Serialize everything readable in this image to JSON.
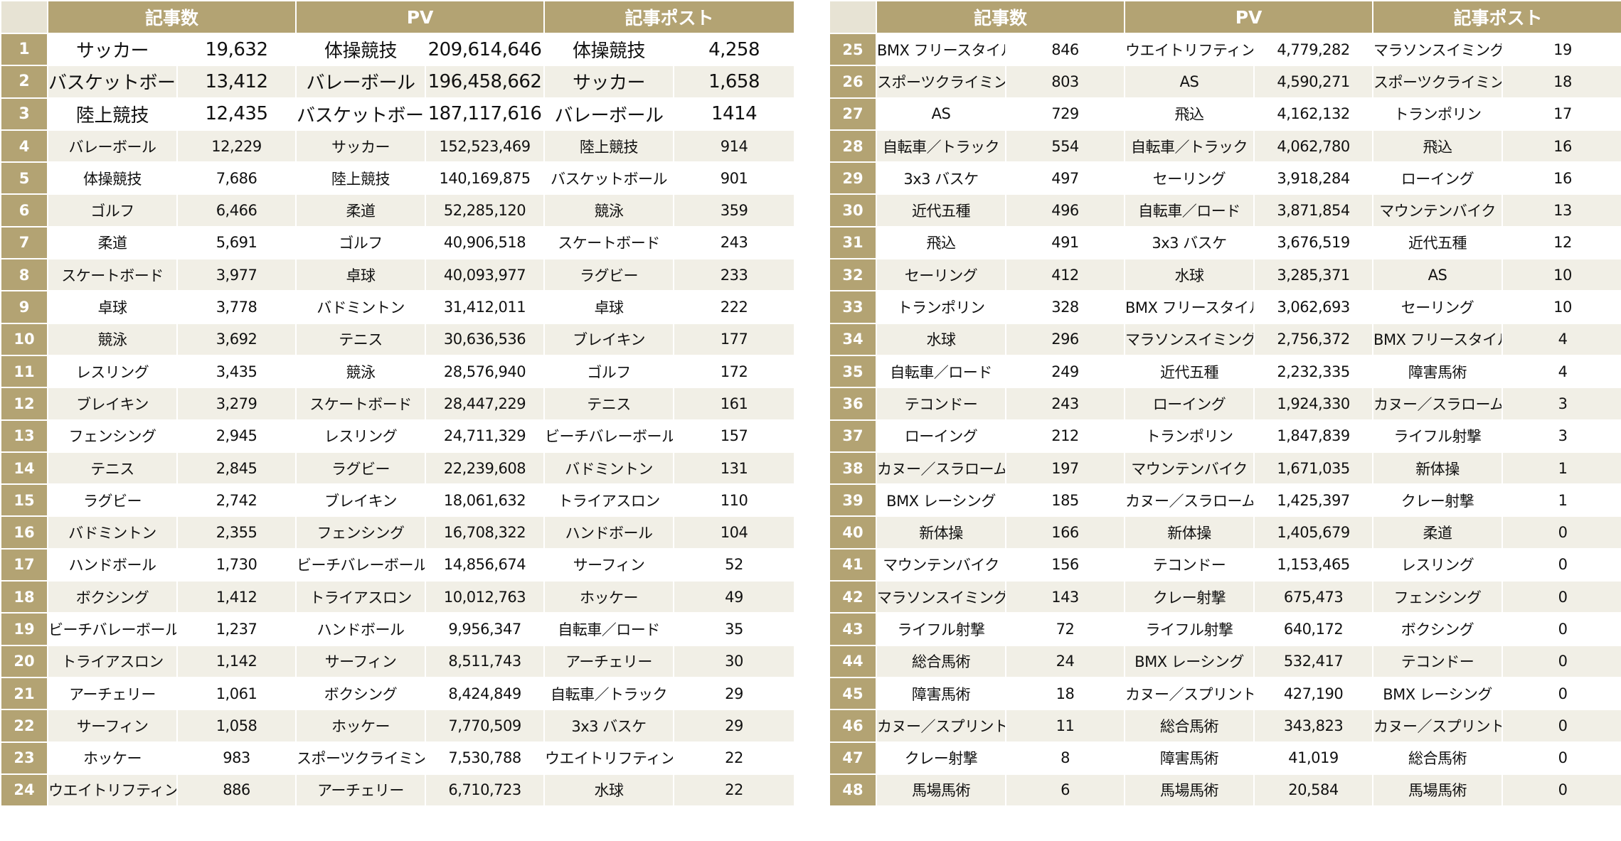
{
  "headers": {
    "articles": "記事数",
    "pv": "PV",
    "posts": "記事ポスト"
  },
  "colors": {
    "header_bg": "#b3a373",
    "stripe_bg": "#f1efe6",
    "corner_bg": "#e7e3d4"
  },
  "left_rows": [
    {
      "rank": "1",
      "a_name": "サッカー",
      "a_val": "19,632",
      "p_name": "体操競技",
      "p_val": "209,614,646",
      "s_name": "体操競技",
      "s_val": "4,258"
    },
    {
      "rank": "2",
      "a_name": "バスケットボール",
      "a_val": "13,412",
      "p_name": "バレーボール",
      "p_val": "196,458,662",
      "s_name": "サッカー",
      "s_val": "1,658"
    },
    {
      "rank": "3",
      "a_name": "陸上競技",
      "a_val": "12,435",
      "p_name": "バスケットボール",
      "p_val": "187,117,616",
      "s_name": "バレーボール",
      "s_val": "1414"
    },
    {
      "rank": "4",
      "a_name": "バレーボール",
      "a_val": "12,229",
      "p_name": "サッカー",
      "p_val": "152,523,469",
      "s_name": "陸上競技",
      "s_val": "914"
    },
    {
      "rank": "5",
      "a_name": "体操競技",
      "a_val": "7,686",
      "p_name": "陸上競技",
      "p_val": "140,169,875",
      "s_name": "バスケットボール",
      "s_val": "901"
    },
    {
      "rank": "6",
      "a_name": "ゴルフ",
      "a_val": "6,466",
      "p_name": "柔道",
      "p_val": "52,285,120",
      "s_name": "競泳",
      "s_val": "359"
    },
    {
      "rank": "7",
      "a_name": "柔道",
      "a_val": "5,691",
      "p_name": "ゴルフ",
      "p_val": "40,906,518",
      "s_name": "スケートボード",
      "s_val": "243"
    },
    {
      "rank": "8",
      "a_name": "スケートボード",
      "a_val": "3,977",
      "p_name": "卓球",
      "p_val": "40,093,977",
      "s_name": "ラグビー",
      "s_val": "233"
    },
    {
      "rank": "9",
      "a_name": "卓球",
      "a_val": "3,778",
      "p_name": "バドミントン",
      "p_val": "31,412,011",
      "s_name": "卓球",
      "s_val": "222"
    },
    {
      "rank": "10",
      "a_name": "競泳",
      "a_val": "3,692",
      "p_name": "テニス",
      "p_val": "30,636,536",
      "s_name": "ブレイキン",
      "s_val": "177"
    },
    {
      "rank": "11",
      "a_name": "レスリング",
      "a_val": "3,435",
      "p_name": "競泳",
      "p_val": "28,576,940",
      "s_name": "ゴルフ",
      "s_val": "172"
    },
    {
      "rank": "12",
      "a_name": "ブレイキン",
      "a_val": "3,279",
      "p_name": "スケートボード",
      "p_val": "28,447,229",
      "s_name": "テニス",
      "s_val": "161"
    },
    {
      "rank": "13",
      "a_name": "フェンシング",
      "a_val": "2,945",
      "p_name": "レスリング",
      "p_val": "24,711,329",
      "s_name": "ビーチバレーボール",
      "s_val": "157"
    },
    {
      "rank": "14",
      "a_name": "テニス",
      "a_val": "2,845",
      "p_name": "ラグビー",
      "p_val": "22,239,608",
      "s_name": "バドミントン",
      "s_val": "131"
    },
    {
      "rank": "15",
      "a_name": "ラグビー",
      "a_val": "2,742",
      "p_name": "ブレイキン",
      "p_val": "18,061,632",
      "s_name": "トライアスロン",
      "s_val": "110"
    },
    {
      "rank": "16",
      "a_name": "バドミントン",
      "a_val": "2,355",
      "p_name": "フェンシング",
      "p_val": "16,708,322",
      "s_name": "ハンドボール",
      "s_val": "104"
    },
    {
      "rank": "17",
      "a_name": "ハンドボール",
      "a_val": "1,730",
      "p_name": "ビーチバレーボール",
      "p_val": "14,856,674",
      "s_name": "サーフィン",
      "s_val": "52"
    },
    {
      "rank": "18",
      "a_name": "ボクシング",
      "a_val": "1,412",
      "p_name": "トライアスロン",
      "p_val": "10,012,763",
      "s_name": "ホッケー",
      "s_val": "49"
    },
    {
      "rank": "19",
      "a_name": "ビーチバレーボール",
      "a_val": "1,237",
      "p_name": "ハンドボール",
      "p_val": "9,956,347",
      "s_name": "自転車／ロード",
      "s_val": "35"
    },
    {
      "rank": "20",
      "a_name": "トライアスロン",
      "a_val": "1,142",
      "p_name": "サーフィン",
      "p_val": "8,511,743",
      "s_name": "アーチェリー",
      "s_val": "30"
    },
    {
      "rank": "21",
      "a_name": "アーチェリー",
      "a_val": "1,061",
      "p_name": "ボクシング",
      "p_val": "8,424,849",
      "s_name": "自転車／トラック",
      "s_val": "29"
    },
    {
      "rank": "22",
      "a_name": "サーフィン",
      "a_val": "1,058",
      "p_name": "ホッケー",
      "p_val": "7,770,509",
      "s_name": "3x3 バスケ",
      "s_val": "29"
    },
    {
      "rank": "23",
      "a_name": "ホッケー",
      "a_val": "983",
      "p_name": "スポーツクライミング",
      "p_val": "7,530,788",
      "s_name": "ウエイトリフティング",
      "s_val": "22"
    },
    {
      "rank": "24",
      "a_name": "ウエイトリフティング",
      "a_val": "886",
      "p_name": "アーチェリー",
      "p_val": "6,710,723",
      "s_name": "水球",
      "s_val": "22"
    }
  ],
  "right_rows": [
    {
      "rank": "25",
      "a_name": "BMX フリースタイル",
      "a_val": "846",
      "p_name": "ウエイトリフティング",
      "p_val": "4,779,282",
      "s_name": "マラソンスイミング",
      "s_val": "19"
    },
    {
      "rank": "26",
      "a_name": "スポーツクライミング",
      "a_val": "803",
      "p_name": "AS",
      "p_val": "4,590,271",
      "s_name": "スポーツクライミング",
      "s_val": "18"
    },
    {
      "rank": "27",
      "a_name": "AS",
      "a_val": "729",
      "p_name": "飛込",
      "p_val": "4,162,132",
      "s_name": "トランポリン",
      "s_val": "17"
    },
    {
      "rank": "28",
      "a_name": "自転車／トラック",
      "a_val": "554",
      "p_name": "自転車／トラック",
      "p_val": "4,062,780",
      "s_name": "飛込",
      "s_val": "16"
    },
    {
      "rank": "29",
      "a_name": "3x3 バスケ",
      "a_val": "497",
      "p_name": "セーリング",
      "p_val": "3,918,284",
      "s_name": "ローイング",
      "s_val": "16"
    },
    {
      "rank": "30",
      "a_name": "近代五種",
      "a_val": "496",
      "p_name": "自転車／ロード",
      "p_val": "3,871,854",
      "s_name": "マウンテンバイク",
      "s_val": "13"
    },
    {
      "rank": "31",
      "a_name": "飛込",
      "a_val": "491",
      "p_name": "3x3 バスケ",
      "p_val": "3,676,519",
      "s_name": "近代五種",
      "s_val": "12"
    },
    {
      "rank": "32",
      "a_name": "セーリング",
      "a_val": "412",
      "p_name": "水球",
      "p_val": "3,285,371",
      "s_name": "AS",
      "s_val": "10"
    },
    {
      "rank": "33",
      "a_name": "トランポリン",
      "a_val": "328",
      "p_name": "BMX フリースタイル",
      "p_val": "3,062,693",
      "s_name": "セーリング",
      "s_val": "10"
    },
    {
      "rank": "34",
      "a_name": "水球",
      "a_val": "296",
      "p_name": "マラソンスイミング",
      "p_val": "2,756,372",
      "s_name": "BMX フリースタイル",
      "s_val": "4"
    },
    {
      "rank": "35",
      "a_name": "自転車／ロード",
      "a_val": "249",
      "p_name": "近代五種",
      "p_val": "2,232,335",
      "s_name": "障害馬術",
      "s_val": "4"
    },
    {
      "rank": "36",
      "a_name": "テコンドー",
      "a_val": "243",
      "p_name": "ローイング",
      "p_val": "1,924,330",
      "s_name": "カヌー／スラローム",
      "s_val": "3"
    },
    {
      "rank": "37",
      "a_name": "ローイング",
      "a_val": "212",
      "p_name": "トランポリン",
      "p_val": "1,847,839",
      "s_name": "ライフル射撃",
      "s_val": "3"
    },
    {
      "rank": "38",
      "a_name": "カヌー／スラローム",
      "a_val": "197",
      "p_name": "マウンテンバイク",
      "p_val": "1,671,035",
      "s_name": "新体操",
      "s_val": "1"
    },
    {
      "rank": "39",
      "a_name": "BMX レーシング",
      "a_val": "185",
      "p_name": "カヌー／スラローム",
      "p_val": "1,425,397",
      "s_name": "クレー射撃",
      "s_val": "1"
    },
    {
      "rank": "40",
      "a_name": "新体操",
      "a_val": "166",
      "p_name": "新体操",
      "p_val": "1,405,679",
      "s_name": "柔道",
      "s_val": "0"
    },
    {
      "rank": "41",
      "a_name": "マウンテンバイク",
      "a_val": "156",
      "p_name": "テコンドー",
      "p_val": "1,153,465",
      "s_name": "レスリング",
      "s_val": "0"
    },
    {
      "rank": "42",
      "a_name": "マラソンスイミング",
      "a_val": "143",
      "p_name": "クレー射撃",
      "p_val": "675,473",
      "s_name": "フェンシング",
      "s_val": "0"
    },
    {
      "rank": "43",
      "a_name": "ライフル射撃",
      "a_val": "72",
      "p_name": "ライフル射撃",
      "p_val": "640,172",
      "s_name": "ボクシング",
      "s_val": "0"
    },
    {
      "rank": "44",
      "a_name": "総合馬術",
      "a_val": "24",
      "p_name": "BMX レーシング",
      "p_val": "532,417",
      "s_name": "テコンドー",
      "s_val": "0"
    },
    {
      "rank": "45",
      "a_name": "障害馬術",
      "a_val": "18",
      "p_name": "カヌー／スプリント",
      "p_val": "427,190",
      "s_name": "BMX レーシング",
      "s_val": "0"
    },
    {
      "rank": "46",
      "a_name": "カヌー／スプリント",
      "a_val": "11",
      "p_name": "総合馬術",
      "p_val": "343,823",
      "s_name": "カヌー／スプリント",
      "s_val": "0"
    },
    {
      "rank": "47",
      "a_name": "クレー射撃",
      "a_val": "8",
      "p_name": "障害馬術",
      "p_val": "41,019",
      "s_name": "総合馬術",
      "s_val": "0"
    },
    {
      "rank": "48",
      "a_name": "馬場馬術",
      "a_val": "6",
      "p_name": "馬場馬術",
      "p_val": "20,584",
      "s_name": "馬場馬術",
      "s_val": "0"
    }
  ]
}
